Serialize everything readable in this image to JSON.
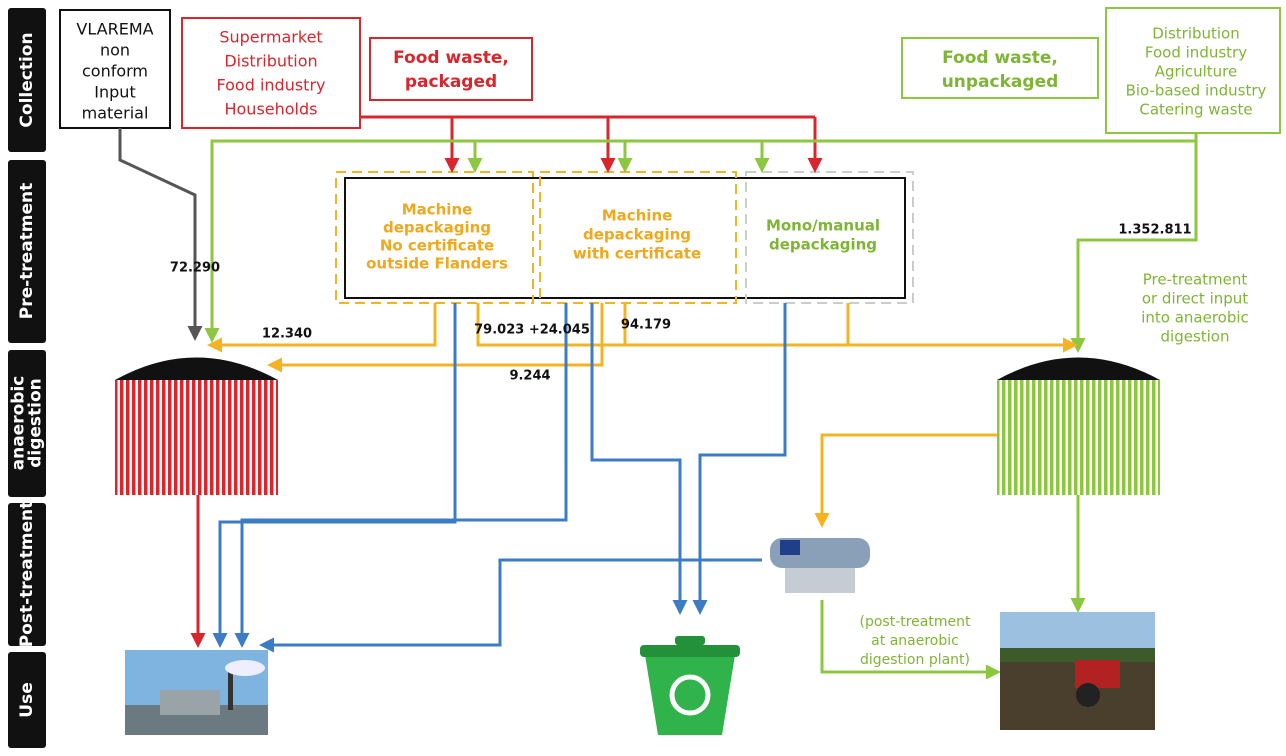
{
  "stages": [
    [
      "Collection"
    ],
    [
      "Pre-treatment"
    ],
    [
      "anaerobic",
      "digestion"
    ],
    [
      "Post-treatment"
    ],
    [
      "Use"
    ]
  ],
  "sources": {
    "vlarema": [
      "VLAREMA",
      "non",
      "conform",
      "Input",
      "material"
    ],
    "packaged_sources": [
      "Supermarket",
      "Distribution",
      "Food industry",
      "Households"
    ],
    "packaged": [
      "Food waste,",
      "packaged"
    ],
    "unpackaged": [
      "Food waste,",
      "unpackaged"
    ],
    "unpackaged_sources": [
      "Distribution",
      "Food industry",
      "Agriculture",
      "Bio-based industry",
      "Catering waste"
    ]
  },
  "pretreatment": [
    [
      "Machine",
      "depackaging",
      "No certificate",
      "outside Flanders"
    ],
    [
      "Machine",
      "depackaging",
      "with certificate"
    ],
    [
      "Mono/manual",
      "depackaging"
    ]
  ],
  "flows": [
    "72.290",
    "12.340",
    "79.023 +24.045",
    "94.179",
    "9.244",
    "1.352.811"
  ],
  "notes": {
    "direct_input": [
      "Pre-treatment",
      "or direct input",
      "into anaerobic",
      "digestion"
    ],
    "post_treatment": [
      "(post-treatment",
      "at anaerobic",
      "digestion plant)"
    ]
  }
}
